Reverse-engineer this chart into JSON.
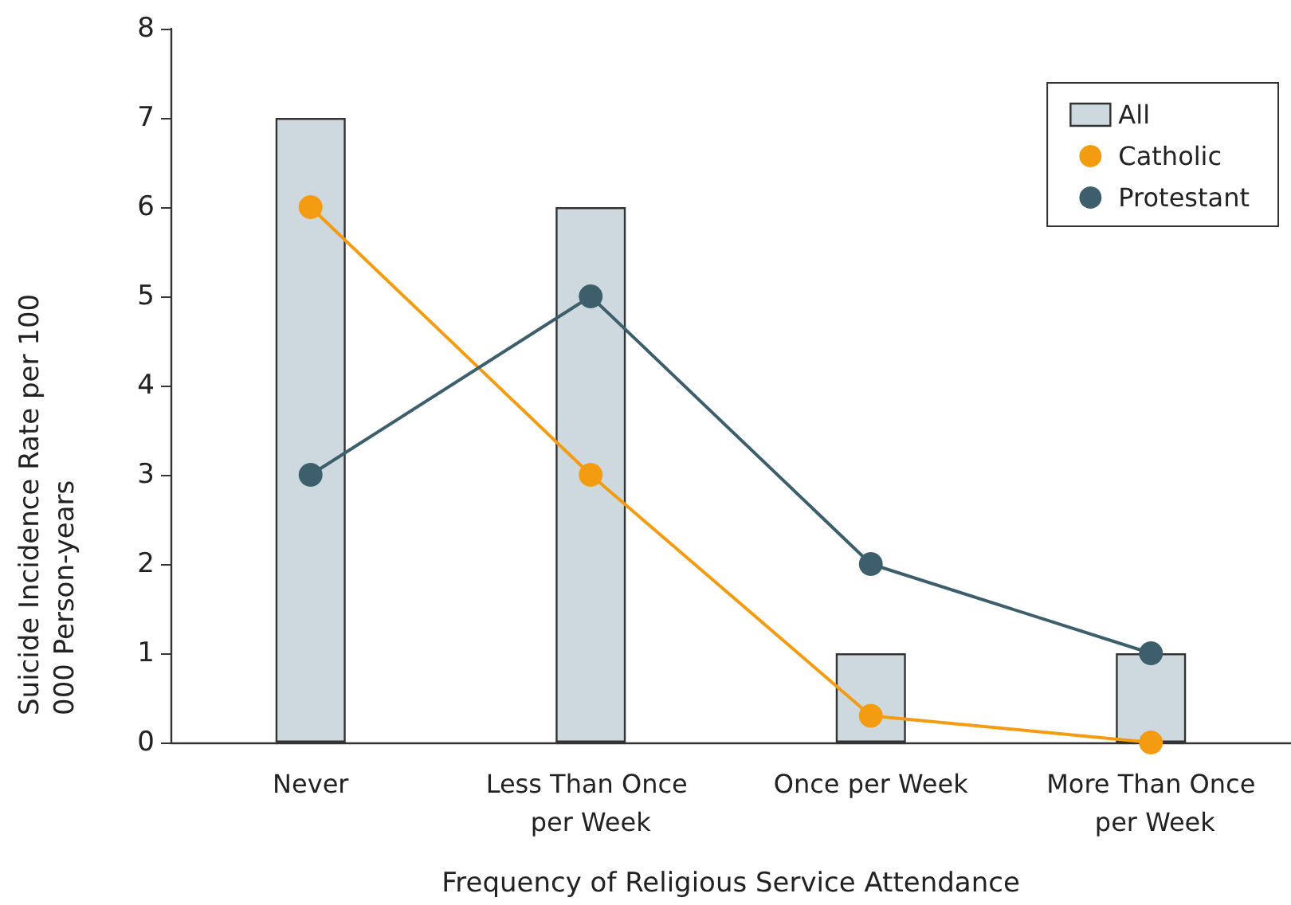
{
  "chart_data": {
    "type": "bar",
    "categories": [
      "Never",
      "Less Than Once per Week",
      "Once per Week",
      "More Than Once per Week"
    ],
    "xlabel": "Frequency of Religious Service Attendance",
    "ylabel": "Suicide Incidence Rate per 100 000 Person-years",
    "ylim": [
      0,
      8
    ],
    "yticks": [
      0,
      1,
      2,
      3,
      4,
      5,
      6,
      7,
      8
    ],
    "grid": false,
    "legend": "top right",
    "marker": "circle",
    "series": [
      {
        "name": "All",
        "color": "#cdd9df",
        "values": [
          7,
          6,
          1,
          1
        ]
      },
      {
        "name": "Catholic",
        "type": "line",
        "color": "#f39c12",
        "values": [
          6,
          3,
          0.3,
          0
        ]
      },
      {
        "name": "Protestant",
        "type": "line",
        "color": "#3d5f6b",
        "values": [
          3,
          5,
          2,
          1
        ]
      }
    ]
  }
}
